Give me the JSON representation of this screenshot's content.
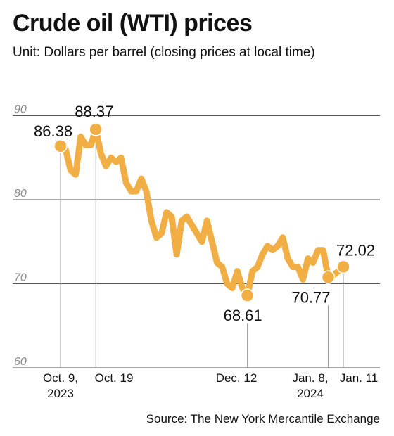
{
  "chart_data": {
    "type": "line",
    "title": "Crude oil (WTI) prices",
    "subtitle": "Unit: Dollars per barrel (closing prices at local time)",
    "source": "Source: The New York Mercantile Exchange",
    "ylim": [
      60,
      93
    ],
    "yticks": [
      60,
      70,
      80,
      90
    ],
    "grid": true,
    "color": "#f0ae45",
    "series": [
      {
        "values": [
          86.38,
          86.0,
          83.5,
          83.0,
          87.5,
          86.5,
          86.5,
          88.37,
          85.5,
          84.0,
          85.0,
          84.5,
          85.0,
          82.0,
          81.0,
          81.0,
          82.5,
          81.0,
          77.5,
          75.5,
          76.0,
          78.5,
          78.0,
          73.5,
          77.5,
          78.0,
          77.0,
          76.0,
          75.0,
          77.5,
          75.0,
          72.5,
          72.0,
          70.0,
          69.5,
          71.5,
          69.5,
          68.61,
          71.5,
          72.0,
          73.5,
          74.5,
          74.0,
          74.5,
          75.5,
          73.0,
          72.0,
          72.0,
          70.5,
          73.0,
          72.5,
          74.0,
          74.0,
          70.77,
          71.0,
          71.5,
          72.02
        ]
      }
    ],
    "highlights": [
      {
        "index": 0,
        "value": "86.38",
        "date_lines": [
          "Oct. 9,",
          "2023"
        ]
      },
      {
        "index": 7,
        "value": "88.37",
        "date_lines": [
          "Oct. 19"
        ]
      },
      {
        "index": 37,
        "value": "68.61",
        "date_lines": [
          "Dec. 12"
        ]
      },
      {
        "index": 53,
        "value": "70.77",
        "date_lines": [
          "Jan. 8,",
          "2024"
        ]
      },
      {
        "index": 56,
        "value": "72.02",
        "date_lines": [
          "Jan. 11"
        ]
      }
    ]
  }
}
